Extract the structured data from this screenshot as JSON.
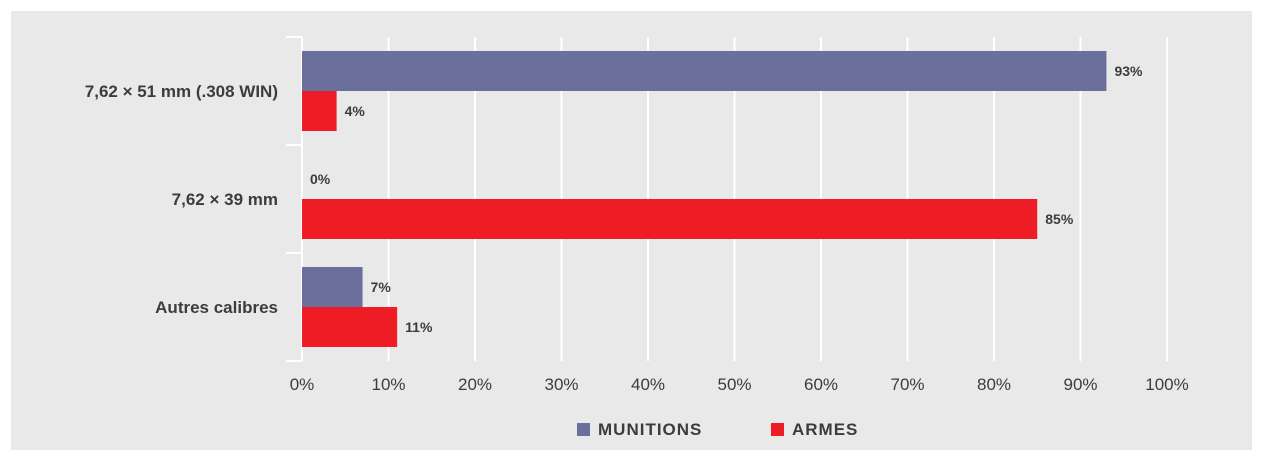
{
  "chart_data": {
    "type": "bar",
    "orientation": "horizontal",
    "categories": [
      "7,62 × 51 mm (.308 WIN)",
      "7,62 × 39 mm",
      "Autres calibres"
    ],
    "series": [
      {
        "name": "MUNITIONS",
        "color": "#6b6f9c",
        "values": [
          93,
          0,
          7
        ],
        "labels": [
          "93%",
          "0%",
          "7%"
        ]
      },
      {
        "name": "ARMES",
        "color": "#ee1c25",
        "values": [
          4,
          85,
          11
        ],
        "labels": [
          "4%",
          "85%",
          "11%"
        ]
      }
    ],
    "xlim": [
      0,
      100
    ],
    "x_ticks": [
      "0%",
      "10%",
      "20%",
      "30%",
      "40%",
      "50%",
      "60%",
      "70%",
      "80%",
      "90%",
      "100%"
    ],
    "grid": true,
    "legend_position": "bottom",
    "background": "#e9e9ea"
  }
}
